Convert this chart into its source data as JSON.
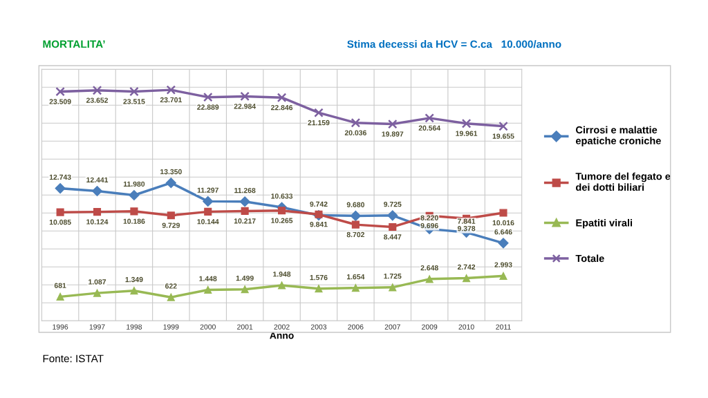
{
  "chart_data": {
    "type": "line",
    "title": "MORTALITA’",
    "subtitle": "Stima decessi da HCV = C.ca   10.000/anno",
    "xlabel": "Anno",
    "categories": [
      "1996",
      "1997",
      "1998",
      "1999",
      "2000",
      "2001",
      "2002",
      "2003",
      "2006",
      "2007",
      "2009",
      "2010",
      "2011"
    ],
    "series": [
      {
        "name": "Cirrosi e malattie\nepatiche croniche",
        "color": "#4a7ebb",
        "marker": "diamond",
        "values": [
          12743,
          12441,
          11980,
          13350,
          11297,
          11268,
          10633,
          9742,
          9680,
          9725,
          8220,
          7841,
          6646
        ],
        "value_labels": [
          "12.743",
          "12.441",
          "11.980",
          "13.350",
          "11.297",
          "11.268",
          "10.633",
          "9.742",
          "9.680",
          "9.725",
          "8.220",
          "7.841",
          "6.646"
        ]
      },
      {
        "name": "Tumore del fegato e\ndei dotti biliari",
        "color": "#be4b48",
        "marker": "square",
        "values": [
          10085,
          10124,
          10186,
          9729,
          10144,
          10217,
          10265,
          9841,
          8702,
          8447,
          9696,
          9378,
          10016
        ],
        "value_labels": [
          "10.085",
          "10.124",
          "10.186",
          "9.729",
          "10.144",
          "10.217",
          "10.265",
          "9.841",
          "8.702",
          "8.447",
          "9.696",
          "9.378",
          "10.016"
        ]
      },
      {
        "name": "Epatiti virali",
        "color": "#98b954",
        "marker": "triangle",
        "values": [
          681,
          1087,
          1349,
          622,
          1448,
          1499,
          1948,
          1576,
          1654,
          1725,
          2648,
          2742,
          2993
        ],
        "value_labels": [
          "681",
          "1.087",
          "1.349",
          "622",
          "1.448",
          "1.499",
          "1.948",
          "1.576",
          "1.654",
          "1.725",
          "2.648",
          "2.742",
          "2.993"
        ]
      },
      {
        "name": "Totale",
        "color": "#7d60a0",
        "marker": "cross",
        "values": [
          23509,
          23652,
          23515,
          23701,
          22889,
          22984,
          22846,
          21159,
          20036,
          19897,
          20564,
          19961,
          19655
        ],
        "value_labels": [
          "23.509",
          "23.652",
          "23.515",
          "23.701",
          "22.889",
          "22.984",
          "22.846",
          "21.159",
          "20.036",
          "19.897",
          "20.564",
          "19.961",
          "19.655"
        ]
      }
    ],
    "ylim": [
      -2000,
      26000
    ],
    "yticks": [
      {
        "value": -2000,
        "label": null
      },
      {
        "value": 0,
        "label": null
      },
      {
        "value": 2000,
        "label": null
      },
      {
        "value": 4000,
        "label": null
      },
      {
        "value": 6000,
        "label": null
      },
      {
        "value": 8000,
        "label": null
      },
      {
        "value": 10000,
        "label": null
      },
      {
        "value": 12000,
        "label": null
      },
      {
        "value": 14000,
        "label": null
      },
      {
        "value": 16000,
        "label": null
      },
      {
        "value": 18000,
        "label": null
      },
      {
        "value": 20000,
        "label": null
      },
      {
        "value": 22000,
        "label": null
      },
      {
        "value": 24000,
        "label": null
      },
      {
        "value": 26000,
        "label": null
      }
    ],
    "tick_labels": "x",
    "grid": true,
    "legend": "right",
    "line_style": "solid",
    "annotations": [
      "Fonte: ISTAT"
    ]
  }
}
